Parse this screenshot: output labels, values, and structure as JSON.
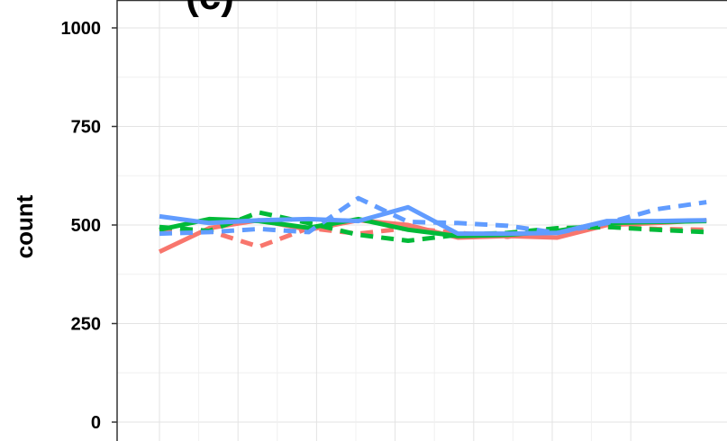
{
  "chart_data": {
    "type": "line",
    "title": "",
    "panel_tag": "(c)",
    "xlabel": "",
    "ylabel": "count",
    "ylim": [
      0,
      1000
    ],
    "y_ticks": [
      0,
      250,
      500,
      750,
      1000
    ],
    "y_tick_labels": [
      "0",
      "250",
      "500",
      "750",
      "1000"
    ],
    "x": [
      1,
      2,
      3,
      4,
      5,
      6,
      7,
      8,
      9,
      10,
      11,
      12
    ],
    "grid": true,
    "legend": "none",
    "series": [
      {
        "color": "#F8766D",
        "dash": "solid",
        "values": [
          432,
          492,
          512,
          488,
          512,
          500,
          468,
          472,
          468,
          500,
          505,
          512
        ]
      },
      {
        "color": "#F8766D",
        "dash": "dashed",
        "values": [
          490,
          485,
          445,
          492,
          478,
          492,
          480,
          470,
          490,
          495,
          490,
          488
        ]
      },
      {
        "color": "#00BA38",
        "dash": "solid",
        "values": [
          488,
          515,
          510,
          493,
          515,
          488,
          472,
          475,
          485,
          505,
          508,
          510
        ]
      },
      {
        "color": "#00BA38",
        "dash": "dashed",
        "values": [
          495,
          485,
          532,
          505,
          475,
          460,
          475,
          480,
          492,
          495,
          488,
          482
        ]
      },
      {
        "color": "#619CFF",
        "dash": "solid",
        "values": [
          522,
          505,
          512,
          515,
          510,
          545,
          478,
          478,
          480,
          510,
          510,
          512
        ]
      },
      {
        "color": "#619CFF",
        "dash": "dashed",
        "values": [
          478,
          482,
          490,
          482,
          568,
          508,
          505,
          498,
          480,
          505,
          540,
          558
        ]
      }
    ]
  }
}
